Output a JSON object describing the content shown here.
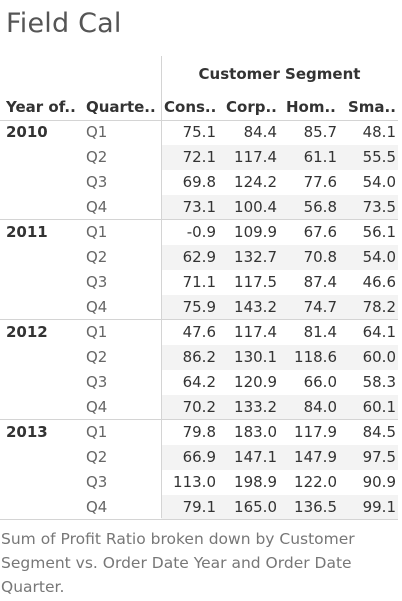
{
  "title": "Field Cal",
  "caption": "Sum of Profit Ratio broken down by Customer Segment vs. Order Date Year and Order Date Quarter.",
  "chart_data": {
    "type": "table",
    "column_group_label": "Customer Segment",
    "row_headers": [
      "Year of..",
      "Quarte.."
    ],
    "columns": [
      "Cons..",
      "Corp..",
      "Hom..",
      "Sma.."
    ],
    "years": [
      {
        "year": "2010",
        "quarters": [
          {
            "quarter": "Q1",
            "values": [
              "75.1",
              "84.4",
              "85.7",
              "48.1"
            ]
          },
          {
            "quarter": "Q2",
            "values": [
              "72.1",
              "117.4",
              "61.1",
              "55.5"
            ]
          },
          {
            "quarter": "Q3",
            "values": [
              "69.8",
              "124.2",
              "77.6",
              "54.0"
            ]
          },
          {
            "quarter": "Q4",
            "values": [
              "73.1",
              "100.4",
              "56.8",
              "73.5"
            ]
          }
        ]
      },
      {
        "year": "2011",
        "quarters": [
          {
            "quarter": "Q1",
            "values": [
              "-0.9",
              "109.9",
              "67.6",
              "56.1"
            ]
          },
          {
            "quarter": "Q2",
            "values": [
              "62.9",
              "132.7",
              "70.8",
              "54.0"
            ]
          },
          {
            "quarter": "Q3",
            "values": [
              "71.1",
              "117.5",
              "87.4",
              "46.6"
            ]
          },
          {
            "quarter": "Q4",
            "values": [
              "75.9",
              "143.2",
              "74.7",
              "78.2"
            ]
          }
        ]
      },
      {
        "year": "2012",
        "quarters": [
          {
            "quarter": "Q1",
            "values": [
              "47.6",
              "117.4",
              "81.4",
              "64.1"
            ]
          },
          {
            "quarter": "Q2",
            "values": [
              "86.2",
              "130.1",
              "118.6",
              "60.0"
            ]
          },
          {
            "quarter": "Q3",
            "values": [
              "64.2",
              "120.9",
              "66.0",
              "58.3"
            ]
          },
          {
            "quarter": "Q4",
            "values": [
              "70.2",
              "133.2",
              "84.0",
              "60.1"
            ]
          }
        ]
      },
      {
        "year": "2013",
        "quarters": [
          {
            "quarter": "Q1",
            "values": [
              "79.8",
              "183.0",
              "117.9",
              "84.5"
            ]
          },
          {
            "quarter": "Q2",
            "values": [
              "66.9",
              "147.1",
              "147.9",
              "97.5"
            ]
          },
          {
            "quarter": "Q3",
            "values": [
              "113.0",
              "198.9",
              "122.0",
              "90.9"
            ]
          },
          {
            "quarter": "Q4",
            "values": [
              "79.1",
              "165.0",
              "136.5",
              "99.1"
            ]
          }
        ]
      }
    ]
  }
}
